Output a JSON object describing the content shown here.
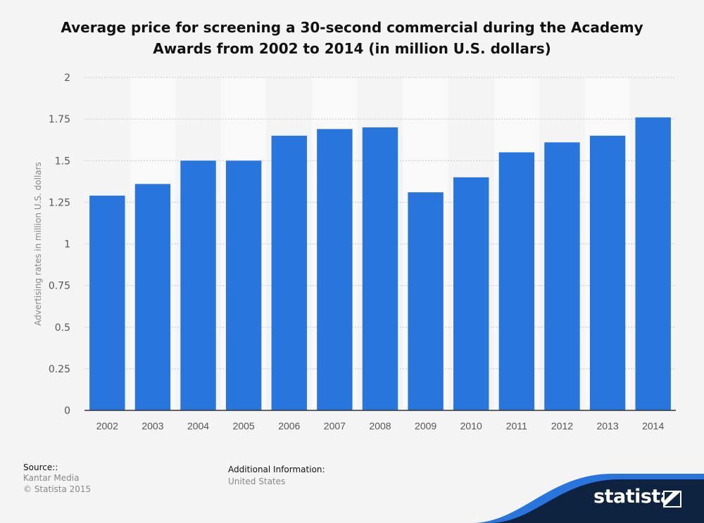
{
  "chart_data": {
    "type": "bar",
    "title": "Average price for screening a 30-second commercial during the Academy Awards from 2002 to 2014 (in million U.S. dollars)",
    "xlabel": "",
    "ylabel": "Advertising rates in million U.S. dollars",
    "categories": [
      "2002",
      "2003",
      "2004",
      "2005",
      "2006",
      "2007",
      "2008",
      "2009",
      "2010",
      "2011",
      "2012",
      "2013",
      "2014"
    ],
    "values": [
      1.29,
      1.36,
      1.5,
      1.5,
      1.65,
      1.69,
      1.7,
      1.31,
      1.4,
      1.55,
      1.61,
      1.65,
      1.76
    ],
    "ylim": [
      0,
      2
    ],
    "yticks": [
      "0",
      "0.25",
      "0.5",
      "0.75",
      "1",
      "1.25",
      "1.5",
      "1.75",
      "2"
    ],
    "grid": true,
    "bar_color": "#2876dd"
  },
  "footer": {
    "source_heading": "Source::",
    "source_lines": [
      "Kantar Media",
      "© Statista 2015"
    ],
    "additional_heading": "Additional Information:",
    "additional_lines": [
      "United States"
    ]
  },
  "brand": {
    "logo_text": "statista",
    "wave_color": "#2876dd",
    "dark_color": "#0d2340"
  }
}
